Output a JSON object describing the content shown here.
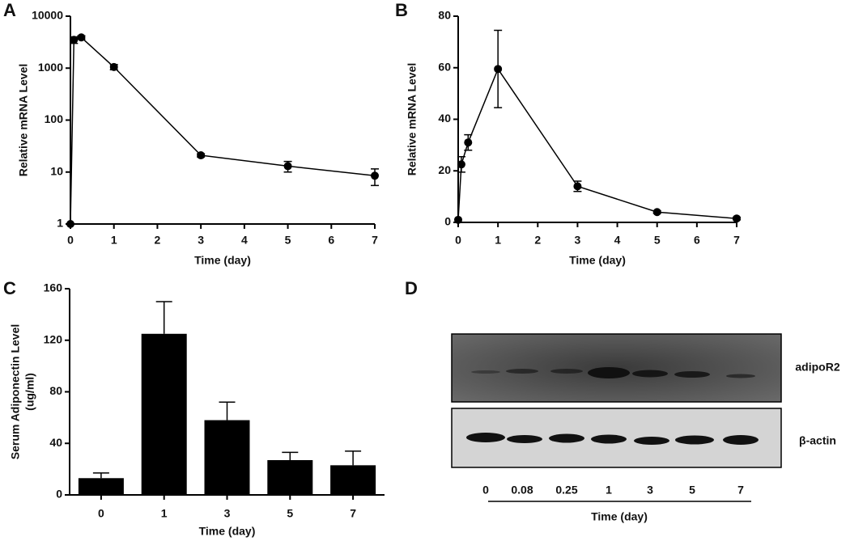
{
  "chart_data": [
    {
      "type": "line",
      "panel": "A",
      "ylabel": "Relative mRNA Level",
      "xlabel": "Time (day)",
      "x": [
        0,
        0.08,
        0.25,
        1,
        3,
        5,
        7
      ],
      "values": [
        1,
        3500,
        3900,
        1050,
        21,
        13,
        8.5
      ],
      "errors": [
        0,
        500,
        300,
        120,
        1.5,
        3,
        3
      ],
      "color": "#000000",
      "xlim": [
        0,
        7
      ],
      "xticks": [
        0,
        1,
        2,
        3,
        4,
        5,
        6,
        7
      ],
      "yscale": "log",
      "ylim": [
        1,
        10000
      ],
      "yticks": [
        1,
        10,
        100,
        1000,
        10000
      ]
    },
    {
      "type": "line",
      "panel": "B",
      "ylabel": "Relative mRNA Level",
      "xlabel": "Time (day)",
      "x": [
        0,
        0.08,
        0.25,
        1,
        3,
        5,
        7
      ],
      "values": [
        1,
        22.5,
        31,
        59.5,
        14,
        4,
        1.5
      ],
      "errors": [
        0,
        3,
        3,
        15,
        2,
        0.5,
        0.5
      ],
      "color": "#000000",
      "xlim": [
        0,
        7
      ],
      "xticks": [
        0,
        1,
        2,
        3,
        4,
        5,
        6,
        7
      ],
      "yscale": "linear",
      "ylim": [
        0,
        80
      ],
      "yticks": [
        0,
        20,
        40,
        60,
        80
      ]
    },
    {
      "type": "bar",
      "panel": "C",
      "ylabel": [
        "Serum Adiponectin Level",
        "(ug/ml)"
      ],
      "xlabel": "Time (day)",
      "categories": [
        "0",
        "1",
        "3",
        "5",
        "7"
      ],
      "values": [
        13,
        125,
        58,
        27,
        23
      ],
      "errors": [
        4,
        25,
        14,
        6,
        11
      ],
      "color": "#000000",
      "yscale": "linear",
      "ylim": [
        0,
        160
      ],
      "yticks": [
        0,
        40,
        80,
        120,
        160
      ]
    }
  ],
  "blot": {
    "panel": "D",
    "rows": [
      "adipoR2",
      "β-actin"
    ],
    "lanes": [
      "0",
      "0.08",
      "0.25",
      "1",
      "3",
      "5",
      "7"
    ],
    "xlabel": "Time (day)"
  }
}
